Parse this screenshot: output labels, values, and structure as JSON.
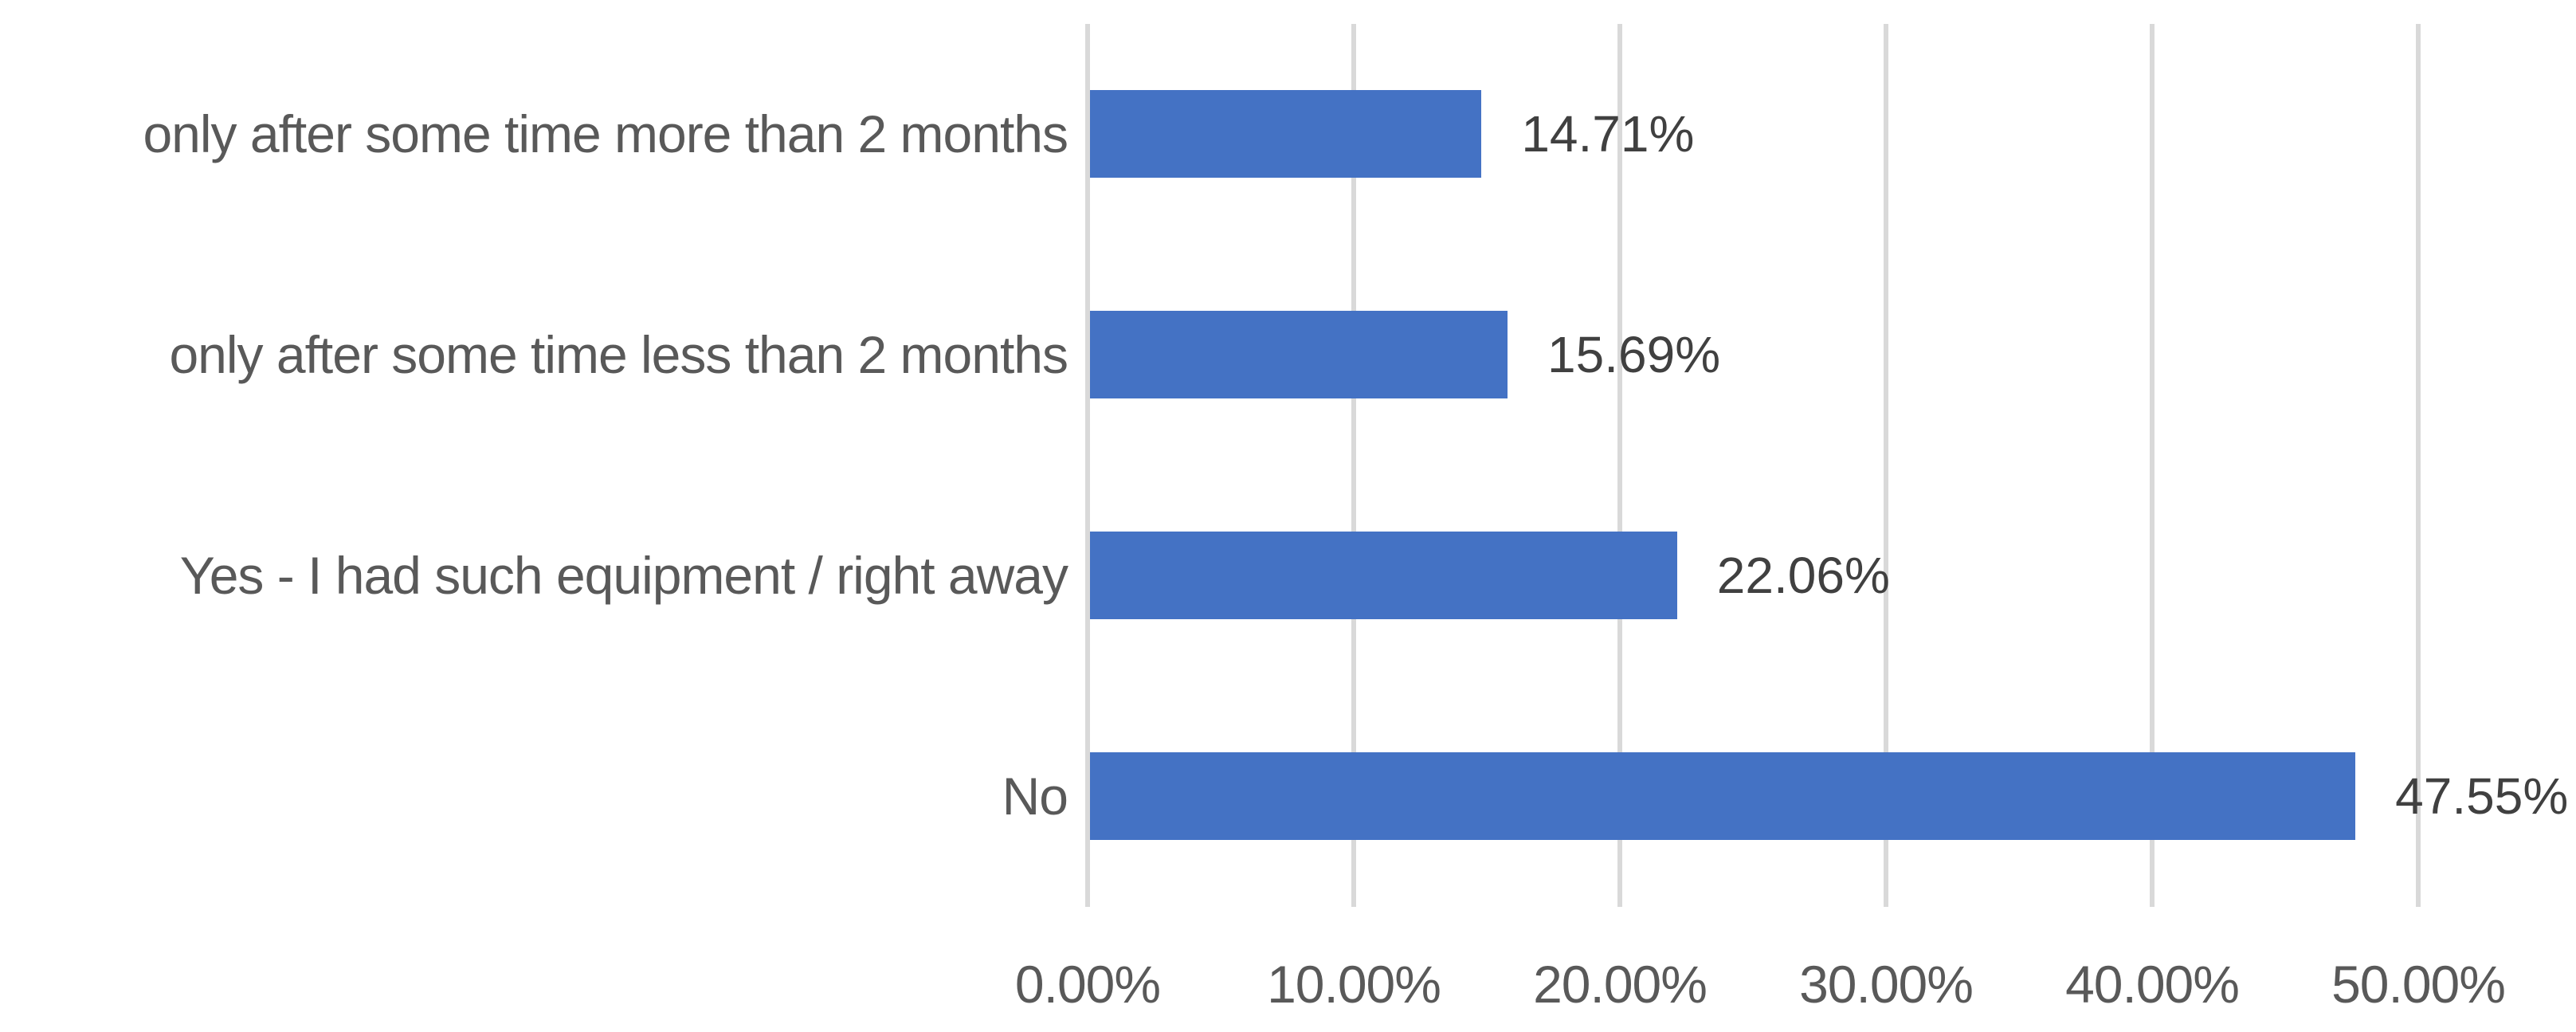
{
  "chart_data": {
    "type": "bar",
    "orientation": "horizontal",
    "title": "",
    "categories": [
      "only after some time more than 2 months",
      "only after some time less than 2 months",
      "Yes - I had such equipment / right away",
      "No"
    ],
    "values": [
      14.71,
      15.69,
      22.06,
      47.55
    ],
    "value_labels": [
      "14.71%",
      "15.69%",
      "22.06%",
      "47.55%"
    ],
    "xlabel": "",
    "ylabel": "",
    "xlim": [
      0,
      50
    ],
    "x_ticks": [
      0,
      10,
      20,
      30,
      40,
      50
    ],
    "x_tick_labels": [
      "0.00%",
      "10.00%",
      "20.00%",
      "30.00%",
      "40.00%",
      "50.00%"
    ],
    "grid": true,
    "legend_position": "none"
  },
  "colors": {
    "bar": "#4472C4",
    "gridline": "#D9D9D9",
    "category_text": "#595959",
    "axis_text": "#595959",
    "value_text": "#404040",
    "background": "#FFFFFF"
  }
}
